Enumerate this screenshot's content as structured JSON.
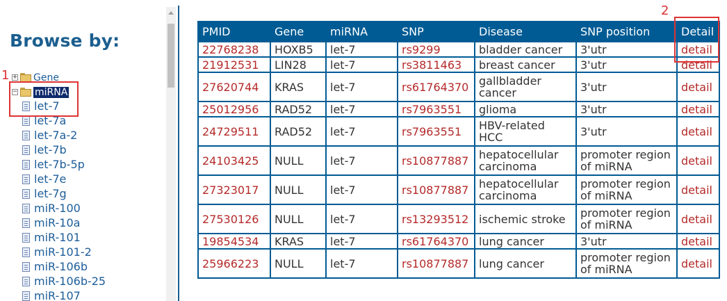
{
  "sidebar": {
    "title": "Browse by:",
    "tree": {
      "gene_label": "Gene",
      "mirna_label": "miRNA",
      "items": [
        "let-7",
        "let-7a",
        "let-7a-2",
        "let-7b",
        "let-7b-5p",
        "let-7e",
        "let-7g",
        "miR-100",
        "miR-10a",
        "miR-101",
        "miR-101-2",
        "miR-106b",
        "miR-106b-25",
        "miR-107"
      ]
    }
  },
  "annotations": {
    "label_1": "1",
    "label_2": "2"
  },
  "table": {
    "headers": [
      "PMID",
      "Gene",
      "miRNA",
      "SNP",
      "Disease",
      "SNP position",
      "Detail"
    ],
    "rows": [
      [
        "22768238",
        "HOXB5",
        "let-7",
        "rs9299",
        "bladder cancer",
        "3'utr",
        "detail"
      ],
      [
        "21912531",
        "LIN28",
        "let-7",
        "rs3811463",
        "breast cancer",
        "3'utr",
        "detail"
      ],
      [
        "27620744",
        "KRAS",
        "let-7",
        "rs61764370",
        "gallbladder cancer",
        "3'utr",
        "detail"
      ],
      [
        "25012956",
        "RAD52",
        "let-7",
        "rs7963551",
        "glioma",
        "3'utr",
        "detail"
      ],
      [
        "24729511",
        "RAD52",
        "let-7",
        "rs7963551",
        "HBV-related HCC",
        "3'utr",
        "detail"
      ],
      [
        "24103425",
        "NULL",
        "let-7",
        "rs10877887",
        "hepatocellular carcinoma",
        "promoter region of miRNA",
        "detail"
      ],
      [
        "27323017",
        "NULL",
        "let-7",
        "rs10877887",
        "hepatocellular carcinoma",
        "promoter region of miRNA",
        "detail"
      ],
      [
        "27530126",
        "NULL",
        "let-7",
        "rs13293512",
        "ischemic stroke",
        "promoter region of miRNA",
        "detail"
      ],
      [
        "19854534",
        "KRAS",
        "let-7",
        "rs61764370",
        "lung cancer",
        "3'utr",
        "detail"
      ],
      [
        "25966223",
        "NULL",
        "let-7",
        "rs10877887",
        "lung cancer",
        "promoter region of miRNA",
        "detail"
      ]
    ]
  },
  "colors": {
    "header_bg": "#005b94",
    "link": "#b52a2a",
    "title": "#1b5f8f",
    "annotation": "#dd3333",
    "selected_bg": "#0e2a6b"
  }
}
